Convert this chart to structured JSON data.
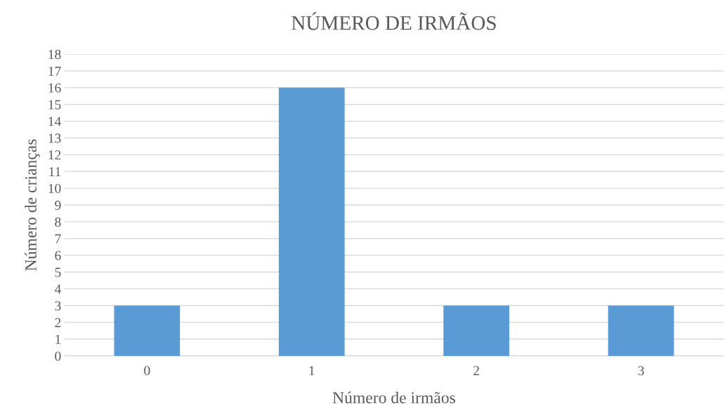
{
  "chart_data": {
    "type": "bar",
    "title": "NÚMERO DE IRMÃOS",
    "xlabel": "Número de irmãos",
    "ylabel": "Número de crianças",
    "categories": [
      "0",
      "1",
      "2",
      "3"
    ],
    "values": [
      3,
      16,
      3,
      3
    ],
    "color": "#5b9bd5",
    "ylim": [
      0,
      18
    ],
    "yticks": [
      0,
      1,
      2,
      3,
      4,
      5,
      6,
      7,
      8,
      9,
      10,
      11,
      12,
      13,
      14,
      15,
      16,
      17,
      18
    ],
    "grid": "y",
    "legend": false
  }
}
